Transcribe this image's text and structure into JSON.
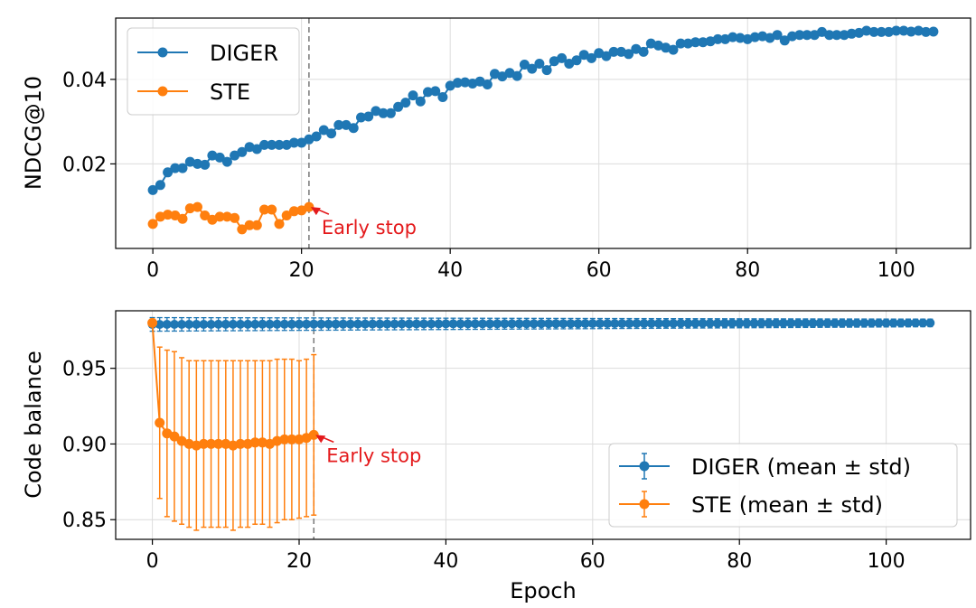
{
  "chart_data": [
    {
      "type": "line",
      "panel": "top",
      "title": "",
      "xlabel": "",
      "ylabel": "NDCG@10",
      "xlim": [
        -5,
        110
      ],
      "ylim": [
        0.0,
        0.0545
      ],
      "xticks": [
        0,
        20,
        40,
        60,
        80,
        100
      ],
      "xtick_labels": [
        "0",
        "20",
        "40",
        "60",
        "80",
        "100"
      ],
      "yticks": [
        0.02,
        0.04
      ],
      "ytick_labels": [
        "0.02",
        "0.04"
      ],
      "grid": true,
      "legend_position": "top-left",
      "vline_x": 21,
      "series": [
        {
          "name": "DIGER",
          "color": "#1f77b4",
          "x": [
            0,
            1,
            2,
            3,
            4,
            5,
            6,
            7,
            8,
            9,
            10,
            11,
            12,
            13,
            14,
            15,
            16,
            17,
            18,
            19,
            20,
            21,
            22,
            23,
            24,
            25,
            26,
            27,
            28,
            29,
            30,
            31,
            32,
            33,
            34,
            35,
            36,
            37,
            38,
            39,
            40,
            41,
            42,
            43,
            44,
            45,
            46,
            47,
            48,
            49,
            50,
            51,
            52,
            53,
            54,
            55,
            56,
            57,
            58,
            59,
            60,
            61,
            62,
            63,
            64,
            65,
            66,
            67,
            68,
            69,
            70,
            71,
            72,
            73,
            74,
            75,
            76,
            77,
            78,
            79,
            80,
            81,
            82,
            83,
            84,
            85,
            86,
            87,
            88,
            89,
            90,
            91,
            92,
            93,
            94,
            95,
            96,
            97,
            98,
            99,
            100,
            101,
            102,
            103,
            104,
            105
          ],
          "y": [
            0.0138,
            0.015,
            0.018,
            0.019,
            0.019,
            0.0205,
            0.02,
            0.0198,
            0.022,
            0.0215,
            0.0205,
            0.022,
            0.0228,
            0.024,
            0.0235,
            0.0245,
            0.0245,
            0.0245,
            0.0245,
            0.025,
            0.025,
            0.0258,
            0.0265,
            0.028,
            0.0272,
            0.0292,
            0.0292,
            0.0285,
            0.031,
            0.0312,
            0.0325,
            0.032,
            0.032,
            0.0335,
            0.0345,
            0.0362,
            0.0348,
            0.037,
            0.0372,
            0.0358,
            0.0385,
            0.0392,
            0.0393,
            0.039,
            0.0395,
            0.0388,
            0.0413,
            0.0407,
            0.0415,
            0.0408,
            0.0435,
            0.0425,
            0.0437,
            0.0422,
            0.0443,
            0.045,
            0.0437,
            0.0445,
            0.0458,
            0.045,
            0.0462,
            0.0455,
            0.0465,
            0.0465,
            0.046,
            0.0472,
            0.0465,
            0.0485,
            0.048,
            0.0475,
            0.047,
            0.0485,
            0.0485,
            0.0488,
            0.0488,
            0.049,
            0.0495,
            0.0495,
            0.05,
            0.0498,
            0.0495,
            0.05,
            0.0502,
            0.0498,
            0.0505,
            0.0492,
            0.0502,
            0.0505,
            0.0505,
            0.0505,
            0.0512,
            0.0505,
            0.0505,
            0.0505,
            0.0508,
            0.051,
            0.0515,
            0.0512,
            0.0512,
            0.0512,
            0.0515,
            0.0515,
            0.0513,
            0.0515,
            0.0512,
            0.0513
          ]
        },
        {
          "name": "STE",
          "color": "#ff7f0e",
          "x": [
            0,
            1,
            2,
            3,
            4,
            5,
            6,
            7,
            8,
            9,
            10,
            11,
            12,
            13,
            14,
            15,
            16,
            17,
            18,
            19,
            20,
            21
          ],
          "y": [
            0.0058,
            0.0075,
            0.008,
            0.0078,
            0.007,
            0.0095,
            0.0098,
            0.0078,
            0.0068,
            0.0075,
            0.0075,
            0.0072,
            0.0045,
            0.0055,
            0.0055,
            0.0092,
            0.0092,
            0.0058,
            0.0078,
            0.0088,
            0.009,
            0.0098
          ]
        }
      ],
      "annotation": {
        "text": "Early stop",
        "color": "#e41a1c",
        "x": 21,
        "y": 0.0098
      }
    },
    {
      "type": "line",
      "panel": "bottom",
      "title": "",
      "xlabel": "Epoch",
      "ylabel": "Code balance",
      "xlim": [
        -5,
        111.5
      ],
      "ylim": [
        0.837,
        0.988
      ],
      "xticks": [
        0,
        20,
        40,
        60,
        80,
        100
      ],
      "xtick_labels": [
        "0",
        "20",
        "40",
        "60",
        "80",
        "100"
      ],
      "yticks": [
        0.85,
        0.9,
        0.95
      ],
      "ytick_labels": [
        "0.85",
        "0.90",
        "0.95"
      ],
      "grid": true,
      "legend_position": "bottom-right",
      "vline_x": 22,
      "series": [
        {
          "name": "DIGER (mean ± std)",
          "color": "#1f77b4",
          "mean_start": 0.979,
          "mean_end": 0.98,
          "std_start": 0.0045,
          "std_end": 0.0025,
          "x_range": [
            0,
            106
          ]
        },
        {
          "name": "STE (mean ± std)",
          "color": "#ff7f0e",
          "x": [
            0,
            1,
            2,
            3,
            4,
            5,
            6,
            7,
            8,
            9,
            10,
            11,
            12,
            13,
            14,
            15,
            16,
            17,
            18,
            19,
            20,
            21,
            22
          ],
          "y": [
            0.98,
            0.914,
            0.907,
            0.905,
            0.902,
            0.9,
            0.899,
            0.9,
            0.9,
            0.9,
            0.9,
            0.899,
            0.9,
            0.9,
            0.901,
            0.901,
            0.9,
            0.902,
            0.903,
            0.903,
            0.903,
            0.904,
            0.906
          ],
          "std": [
            0.0,
            0.05,
            0.055,
            0.056,
            0.055,
            0.055,
            0.056,
            0.055,
            0.055,
            0.055,
            0.055,
            0.056,
            0.055,
            0.055,
            0.054,
            0.054,
            0.055,
            0.054,
            0.053,
            0.053,
            0.052,
            0.052,
            0.053
          ]
        }
      ],
      "annotation": {
        "text": "Early stop",
        "color": "#e41a1c",
        "x": 22,
        "y": 0.906
      }
    }
  ]
}
